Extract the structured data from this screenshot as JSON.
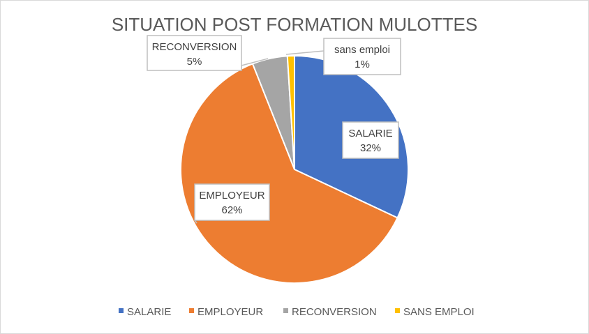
{
  "chart_data": {
    "type": "pie",
    "title": "SITUATION POST FORMATION MULOTTES",
    "categories": [
      "SALARIE",
      "EMPLOYEUR",
      "RECONVERSION",
      "SANS EMPLOI"
    ],
    "values": [
      32,
      62,
      5,
      1
    ],
    "colors": [
      "#4472c4",
      "#ed7d31",
      "#a5a5a5",
      "#ffc000"
    ],
    "data_labels": [
      {
        "name": "SALARIE",
        "value": "32%"
      },
      {
        "name": "EMPLOYEUR",
        "value": "62%"
      },
      {
        "name": "RECONVERSION",
        "value": "5%"
      },
      {
        "name": "sans emploi",
        "value": "1%"
      }
    ],
    "legend": {
      "position": "bottom",
      "entries": [
        "SALARIE",
        "EMPLOYEUR",
        "RECONVERSION",
        "SANS EMPLOI"
      ]
    }
  }
}
